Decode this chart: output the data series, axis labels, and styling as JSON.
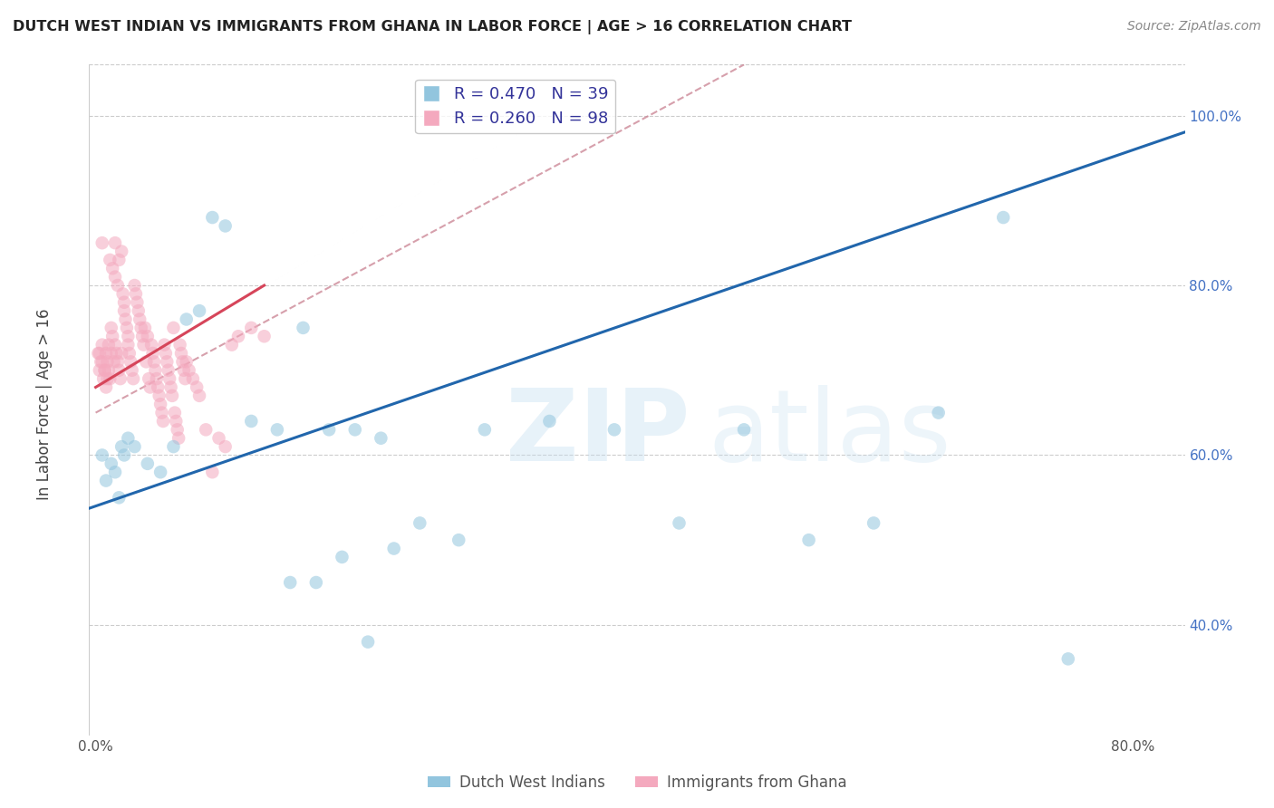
{
  "title": "DUTCH WEST INDIAN VS IMMIGRANTS FROM GHANA IN LABOR FORCE | AGE > 16 CORRELATION CHART",
  "source": "Source: ZipAtlas.com",
  "ylabel": "In Labor Force | Age > 16",
  "xlim": [
    -0.005,
    0.84
  ],
  "ylim": [
    0.27,
    1.06
  ],
  "blue_R": 0.47,
  "blue_N": 39,
  "pink_R": 0.26,
  "pink_N": 98,
  "blue_color": "#92c5de",
  "pink_color": "#f4a9be",
  "blue_line_color": "#2166ac",
  "pink_line_color": "#d6455a",
  "dashed_line_color": "#c98090",
  "legend_label_blue": "Dutch West Indians",
  "legend_label_pink": "Immigrants from Ghana",
  "blue_line_x0": 0.0,
  "blue_line_y0": 0.54,
  "blue_line_x1": 0.82,
  "blue_line_y1": 0.97,
  "pink_line_x0": 0.0,
  "pink_line_y0": 0.68,
  "pink_line_x1": 0.13,
  "pink_line_y1": 0.8,
  "dash_line_x0": 0.0,
  "dash_line_y0": 0.65,
  "dash_line_x1": 0.5,
  "dash_line_y1": 1.06,
  "blue_x": [
    0.005,
    0.008,
    0.012,
    0.015,
    0.018,
    0.02,
    0.022,
    0.025,
    0.03,
    0.04,
    0.05,
    0.06,
    0.07,
    0.08,
    0.09,
    0.1,
    0.12,
    0.14,
    0.16,
    0.18,
    0.2,
    0.22,
    0.25,
    0.28,
    0.3,
    0.35,
    0.4,
    0.45,
    0.5,
    0.55,
    0.6,
    0.65,
    0.7,
    0.15,
    0.17,
    0.19,
    0.21,
    0.23,
    0.75
  ],
  "blue_y": [
    0.6,
    0.57,
    0.59,
    0.58,
    0.55,
    0.61,
    0.6,
    0.62,
    0.61,
    0.59,
    0.58,
    0.61,
    0.76,
    0.77,
    0.88,
    0.87,
    0.64,
    0.63,
    0.75,
    0.63,
    0.63,
    0.62,
    0.52,
    0.5,
    0.63,
    0.64,
    0.63,
    0.52,
    0.63,
    0.5,
    0.52,
    0.65,
    0.88,
    0.45,
    0.45,
    0.48,
    0.38,
    0.49,
    0.36
  ],
  "pink_x": [
    0.002,
    0.003,
    0.004,
    0.005,
    0.005,
    0.006,
    0.007,
    0.008,
    0.008,
    0.009,
    0.01,
    0.01,
    0.011,
    0.012,
    0.012,
    0.013,
    0.014,
    0.015,
    0.015,
    0.016,
    0.017,
    0.018,
    0.018,
    0.019,
    0.02,
    0.02,
    0.021,
    0.022,
    0.022,
    0.023,
    0.024,
    0.025,
    0.025,
    0.026,
    0.027,
    0.028,
    0.029,
    0.03,
    0.031,
    0.032,
    0.033,
    0.034,
    0.035,
    0.036,
    0.037,
    0.038,
    0.039,
    0.04,
    0.041,
    0.042,
    0.043,
    0.044,
    0.045,
    0.046,
    0.047,
    0.048,
    0.049,
    0.05,
    0.051,
    0.052,
    0.053,
    0.054,
    0.055,
    0.056,
    0.057,
    0.058,
    0.059,
    0.06,
    0.061,
    0.062,
    0.063,
    0.064,
    0.065,
    0.066,
    0.067,
    0.068,
    0.069,
    0.07,
    0.072,
    0.075,
    0.078,
    0.08,
    0.085,
    0.09,
    0.095,
    0.1,
    0.105,
    0.11,
    0.12,
    0.13,
    0.003,
    0.005,
    0.007,
    0.009,
    0.011,
    0.013,
    0.015,
    0.017
  ],
  "pink_y": [
    0.72,
    0.7,
    0.71,
    0.73,
    0.85,
    0.69,
    0.7,
    0.72,
    0.68,
    0.71,
    0.73,
    0.7,
    0.69,
    0.72,
    0.75,
    0.74,
    0.71,
    0.73,
    0.85,
    0.72,
    0.71,
    0.7,
    0.83,
    0.69,
    0.72,
    0.84,
    0.79,
    0.78,
    0.77,
    0.76,
    0.75,
    0.74,
    0.73,
    0.72,
    0.71,
    0.7,
    0.69,
    0.8,
    0.79,
    0.78,
    0.77,
    0.76,
    0.75,
    0.74,
    0.73,
    0.75,
    0.71,
    0.74,
    0.69,
    0.68,
    0.73,
    0.72,
    0.71,
    0.7,
    0.69,
    0.68,
    0.67,
    0.66,
    0.65,
    0.64,
    0.73,
    0.72,
    0.71,
    0.7,
    0.69,
    0.68,
    0.67,
    0.75,
    0.65,
    0.64,
    0.63,
    0.62,
    0.73,
    0.72,
    0.71,
    0.7,
    0.69,
    0.71,
    0.7,
    0.69,
    0.68,
    0.67,
    0.63,
    0.58,
    0.62,
    0.61,
    0.73,
    0.74,
    0.75,
    0.74,
    0.72,
    0.71,
    0.7,
    0.69,
    0.83,
    0.82,
    0.81,
    0.8
  ]
}
